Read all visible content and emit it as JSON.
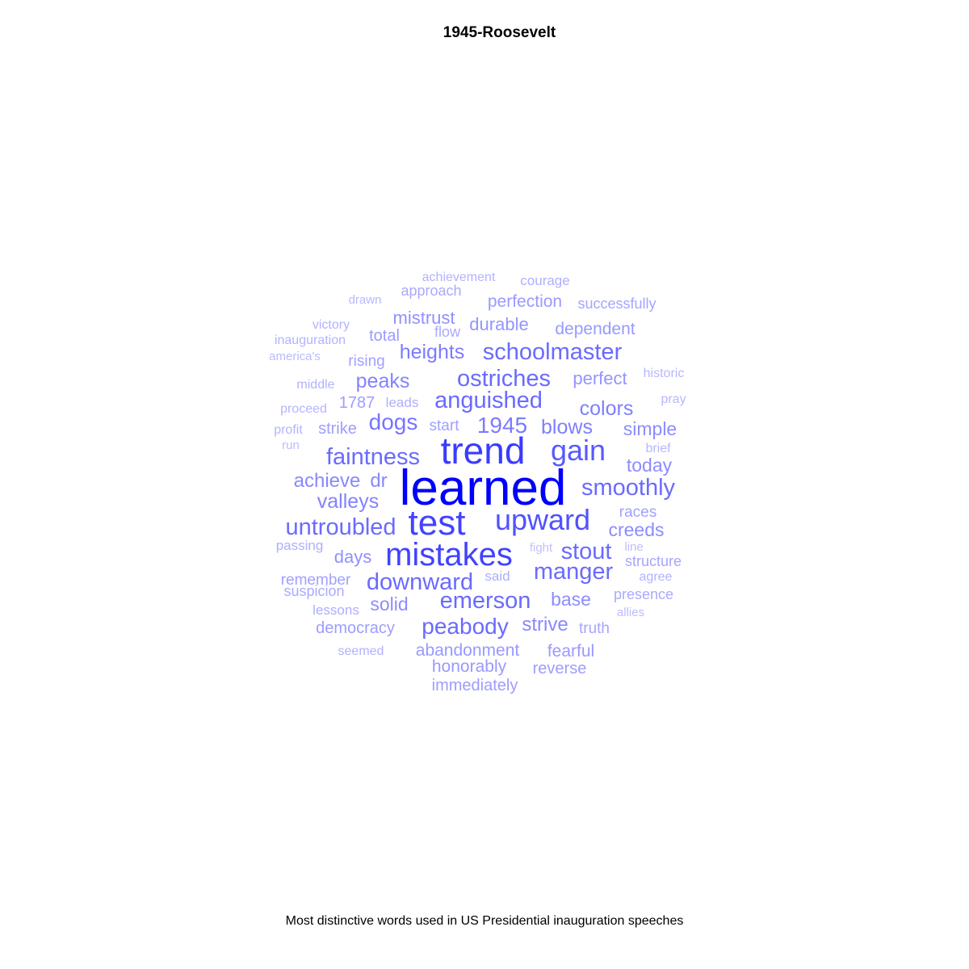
{
  "chart_data": {
    "type": "wordcloud",
    "title": "1945-Roosevelt",
    "caption": "Most distinctive words used in US Presidential inauguration speeches",
    "color_scale": {
      "low": "#d4d4ff",
      "high": "#0000ff"
    },
    "words": [
      {
        "text": "learned",
        "weight": 1.0
      },
      {
        "text": "trend",
        "weight": 0.72
      },
      {
        "text": "mistakes",
        "weight": 0.69
      },
      {
        "text": "test",
        "weight": 0.69
      },
      {
        "text": "upward",
        "weight": 0.62
      },
      {
        "text": "gain",
        "weight": 0.58
      },
      {
        "text": "faintness",
        "weight": 0.5
      },
      {
        "text": "untroubled",
        "weight": 0.5
      },
      {
        "text": "downward",
        "weight": 0.5
      },
      {
        "text": "manger",
        "weight": 0.5
      },
      {
        "text": "stout",
        "weight": 0.5
      },
      {
        "text": "smoothly",
        "weight": 0.5
      },
      {
        "text": "anguished",
        "weight": 0.5
      },
      {
        "text": "ostriches",
        "weight": 0.5
      },
      {
        "text": "schoolmaster",
        "weight": 0.5
      },
      {
        "text": "emerson",
        "weight": 0.5
      },
      {
        "text": "peabody",
        "weight": 0.5
      },
      {
        "text": "dogs",
        "weight": 0.45
      },
      {
        "text": "1945",
        "weight": 0.42
      },
      {
        "text": "heights",
        "weight": 0.42
      },
      {
        "text": "colors",
        "weight": 0.4
      },
      {
        "text": "blows",
        "weight": 0.4
      },
      {
        "text": "peaks",
        "weight": 0.38
      },
      {
        "text": "valleys",
        "weight": 0.38
      },
      {
        "text": "achieve",
        "weight": 0.36
      },
      {
        "text": "strive",
        "weight": 0.36
      },
      {
        "text": "dr",
        "weight": 0.36
      },
      {
        "text": "simple",
        "weight": 0.34
      },
      {
        "text": "today",
        "weight": 0.34
      },
      {
        "text": "creeds",
        "weight": 0.34
      },
      {
        "text": "base",
        "weight": 0.34
      },
      {
        "text": "solid",
        "weight": 0.34
      },
      {
        "text": "mistrust",
        "weight": 0.32
      },
      {
        "text": "days",
        "weight": 0.32
      },
      {
        "text": "durable",
        "weight": 0.3
      },
      {
        "text": "perfect",
        "weight": 0.3
      },
      {
        "text": "dependent",
        "weight": 0.28
      },
      {
        "text": "perfection",
        "weight": 0.28
      },
      {
        "text": "abandonment",
        "weight": 0.28
      },
      {
        "text": "honorably",
        "weight": 0.28
      },
      {
        "text": "fearful",
        "weight": 0.28
      },
      {
        "text": "total",
        "weight": 0.27
      },
      {
        "text": "democracy",
        "weight": 0.26
      },
      {
        "text": "reverse",
        "weight": 0.26
      },
      {
        "text": "immediately",
        "weight": 0.26
      },
      {
        "text": "strike",
        "weight": 0.26
      },
      {
        "text": "1787",
        "weight": 0.26
      },
      {
        "text": "races",
        "weight": 0.24
      },
      {
        "text": "remember",
        "weight": 0.24
      },
      {
        "text": "start",
        "weight": 0.24
      },
      {
        "text": "rising",
        "weight": 0.24
      },
      {
        "text": "truth",
        "weight": 0.22
      },
      {
        "text": "successfully",
        "weight": 0.22
      },
      {
        "text": "structure",
        "weight": 0.22
      },
      {
        "text": "presence",
        "weight": 0.2
      },
      {
        "text": "approach",
        "weight": 0.2
      },
      {
        "text": "flow",
        "weight": 0.2
      },
      {
        "text": "suspicion",
        "weight": 0.2
      },
      {
        "text": "leads",
        "weight": 0.18
      },
      {
        "text": "courage",
        "weight": 0.18
      },
      {
        "text": "lessons",
        "weight": 0.18
      },
      {
        "text": "said",
        "weight": 0.18
      },
      {
        "text": "passing",
        "weight": 0.18
      },
      {
        "text": "victory",
        "weight": 0.16
      },
      {
        "text": "inauguration",
        "weight": 0.16
      },
      {
        "text": "achievement",
        "weight": 0.16
      },
      {
        "text": "seemed",
        "weight": 0.16
      },
      {
        "text": "middle",
        "weight": 0.16
      },
      {
        "text": "agree",
        "weight": 0.16
      },
      {
        "text": "proceed",
        "weight": 0.15
      },
      {
        "text": "profit",
        "weight": 0.15
      },
      {
        "text": "historic",
        "weight": 0.14
      },
      {
        "text": "pray",
        "weight": 0.14
      },
      {
        "text": "brief",
        "weight": 0.14
      },
      {
        "text": "drawn",
        "weight": 0.13
      },
      {
        "text": "america's",
        "weight": 0.12
      },
      {
        "text": "run",
        "weight": 0.12
      },
      {
        "text": "allies",
        "weight": 0.12
      },
      {
        "text": "line",
        "weight": 0.11
      },
      {
        "text": "fight",
        "weight": 0.1
      }
    ]
  }
}
